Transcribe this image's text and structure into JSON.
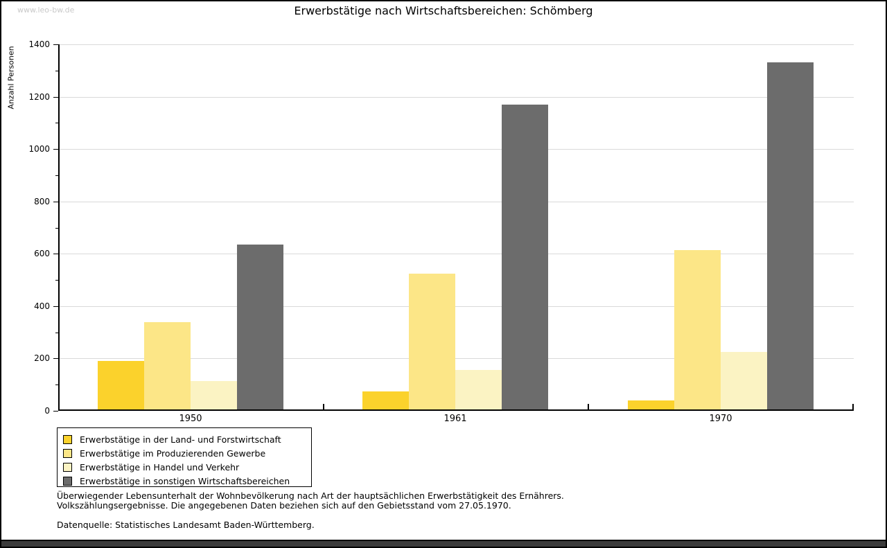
{
  "page": {
    "watermark": "www.leo-bw.de",
    "title": "Erwerbstätige nach Wirtschaftsbereichen: Schömberg"
  },
  "chart_data": {
    "type": "bar",
    "title": "Erwerbstätige nach Wirtschaftsbereichen: Schömberg",
    "categories": [
      "1950",
      "1961",
      "1970"
    ],
    "series": [
      {
        "name": "Erwerbstätige in der Land- und Forstwirtschaft",
        "color": "#FBD22C",
        "values": [
          190,
          75,
          40
        ]
      },
      {
        "name": "Erwerbstätige im Produzierenden Gewerbe",
        "color": "#FCE687",
        "values": [
          340,
          525,
          615
        ]
      },
      {
        "name": "Erwerbstätige in Handel und Verkehr",
        "color": "#FBF3C3",
        "values": [
          115,
          155,
          225
        ]
      },
      {
        "name": "Erwerbstätige in sonstigen Wirtschaftsbereichen",
        "color": "#6C6C6C",
        "values": [
          635,
          1170,
          1330
        ]
      }
    ],
    "xlabel": "",
    "ylabel": "Anzahl Personen",
    "ylim": [
      0,
      1400
    ],
    "yticks": [
      0,
      200,
      400,
      600,
      800,
      1000,
      1200,
      1400
    ],
    "ytick_step": 200,
    "yminor_step": 100,
    "grid": true,
    "grid_color": "#D9D9D9",
    "legend_position": "bottom-left"
  },
  "footnotes": {
    "line1": "Überwiegender Lebensunterhalt der Wohnbevölkerung nach Art der hauptsächlichen Erwerbstätigkeit des Ernährers.",
    "line2": "Volkszählungsergebnisse. Die angegebenen Daten beziehen sich auf den Gebietsstand vom 27.05.1970.",
    "source": "Datenquelle: Statistisches Landesamt Baden-Württemberg."
  }
}
